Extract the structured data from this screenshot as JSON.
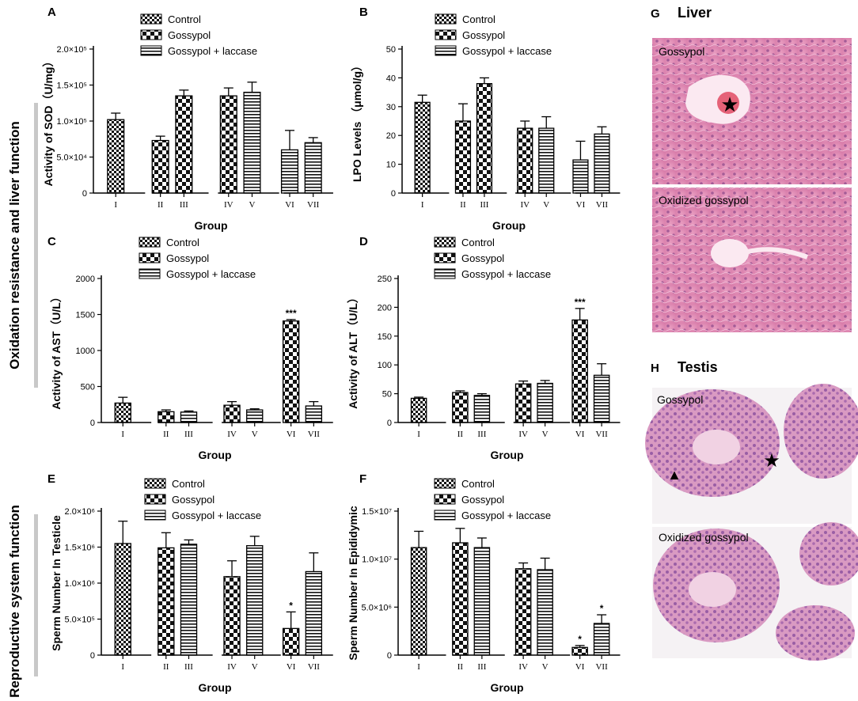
{
  "figure": {
    "side_labels": [
      {
        "id": "oxidation",
        "text": "Oxidation resistance and liver function"
      },
      {
        "id": "reproductive",
        "text": "Reproductive system function"
      }
    ],
    "legend_entries": [
      "Control",
      "Gossypol",
      "Gossypol + laccase"
    ],
    "colors": {
      "ink": "#000000",
      "bar_fill": "#ffffff",
      "side_bar": "#c8c8c8",
      "tissue_pink": "#e38fb4",
      "tissue_purple": "#b66aa3"
    }
  },
  "chart_data": [
    {
      "panel": "A",
      "type": "bar",
      "categories": [
        "I",
        "II",
        "III",
        "IV",
        "V",
        "VI",
        "VII"
      ],
      "values": [
        102000,
        73000,
        135000,
        135000,
        140000,
        60000,
        70000
      ],
      "errors": [
        9000,
        6000,
        8000,
        11000,
        14000,
        27000,
        7000
      ],
      "ylabel": "Activity of SOD（U/mg）",
      "xlabel": "Group",
      "ylim": [
        0,
        200000
      ],
      "yticks": [
        0,
        50000,
        100000,
        150000,
        200000
      ],
      "ytick_labels": [
        "0",
        "5.0×10⁴",
        "1.0×10⁵",
        "1.5×10⁵",
        "2.0×10⁵"
      ],
      "legend": [
        "Control",
        "Gossypol",
        "Gossypol + laccase"
      ],
      "annotations": []
    },
    {
      "panel": "B",
      "type": "bar",
      "categories": [
        "I",
        "II",
        "III",
        "IV",
        "V",
        "VI",
        "VII"
      ],
      "values": [
        31.5,
        25,
        38,
        22.5,
        22.5,
        11.5,
        20.5
      ],
      "errors": [
        2.5,
        6,
        2,
        2.5,
        4,
        6.5,
        2.5
      ],
      "ylabel": "LPO Levels （μmol/g）",
      "xlabel": "Group",
      "ylim": [
        0,
        50
      ],
      "yticks": [
        0,
        10,
        20,
        30,
        40,
        50
      ],
      "ytick_labels": [
        "0",
        "10",
        "20",
        "30",
        "40",
        "50"
      ],
      "legend": [
        "Control",
        "Gossypol",
        "Gossypol + laccase"
      ],
      "annotations": []
    },
    {
      "panel": "C",
      "type": "bar",
      "categories": [
        "I",
        "II",
        "III",
        "IV",
        "V",
        "VI",
        "VII"
      ],
      "values": [
        270,
        150,
        145,
        240,
        175,
        1410,
        230
      ],
      "errors": [
        80,
        25,
        15,
        50,
        15,
        20,
        60
      ],
      "ylabel": "Activity of AST（U/L）",
      "xlabel": "Group",
      "ylim": [
        0,
        2000
      ],
      "yticks": [
        0,
        500,
        1000,
        1500,
        2000
      ],
      "ytick_labels": [
        "0",
        "500",
        "1000",
        "1500",
        "2000"
      ],
      "legend": [
        "Control",
        "Gossypol",
        "Gossypol + laccase"
      ],
      "annotations": [
        {
          "category": "VI",
          "text": "***"
        }
      ]
    },
    {
      "panel": "D",
      "type": "bar",
      "categories": [
        "I",
        "II",
        "III",
        "IV",
        "V",
        "VI",
        "VII"
      ],
      "values": [
        42,
        52,
        47,
        67,
        68,
        178,
        82
      ],
      "errors": [
        2,
        3,
        3,
        5,
        5,
        20,
        20
      ],
      "ylabel": "Activity of ALT（U/L）",
      "xlabel": "Group",
      "ylim": [
        0,
        250
      ],
      "yticks": [
        0,
        50,
        100,
        150,
        200,
        250
      ],
      "ytick_labels": [
        "0",
        "50",
        "100",
        "150",
        "200",
        "250"
      ],
      "legend": [
        "Control",
        "Gossypol",
        "Gossypol + laccase"
      ],
      "annotations": [
        {
          "category": "VI",
          "text": "***"
        }
      ]
    },
    {
      "panel": "E",
      "type": "bar",
      "categories": [
        "I",
        "II",
        "III",
        "IV",
        "V",
        "VI",
        "VII"
      ],
      "values": [
        1550000,
        1490000,
        1540000,
        1090000,
        1520000,
        370000,
        1160000
      ],
      "errors": [
        310000,
        210000,
        60000,
        220000,
        130000,
        230000,
        260000
      ],
      "ylabel": "Sperm Number In Testicle",
      "xlabel": "Group",
      "ylim": [
        0,
        2000000
      ],
      "yticks": [
        0,
        500000,
        1000000,
        1500000,
        2000000
      ],
      "ytick_labels": [
        "0",
        "5.0×10⁵",
        "1.0×10⁶",
        "1.5×10⁶",
        "2.0×10⁶"
      ],
      "legend": [
        "Control",
        "Gossypol",
        "Gossypol + laccase"
      ],
      "annotations": [
        {
          "category": "VI",
          "text": "*"
        }
      ]
    },
    {
      "panel": "F",
      "type": "bar",
      "categories": [
        "I",
        "II",
        "III",
        "IV",
        "V",
        "VI",
        "VII"
      ],
      "values": [
        11200000,
        11700000,
        11200000,
        9000000,
        8900000,
        800000,
        3300000
      ],
      "errors": [
        1700000,
        1500000,
        1000000,
        600000,
        1200000,
        200000,
        900000
      ],
      "ylabel": "Sperm Number In Epididymic",
      "xlabel": "Group",
      "ylim": [
        0,
        15000000
      ],
      "yticks": [
        0,
        5000000,
        10000000,
        15000000
      ],
      "ytick_labels": [
        "0",
        "5.0×10⁶",
        "1.0×10⁷",
        "1.5×10⁷"
      ],
      "legend": [
        "Control",
        "Gossypol",
        "Gossypol + laccase"
      ],
      "annotations": [
        {
          "category": "VI",
          "text": "*"
        },
        {
          "category": "VII",
          "text": "*"
        }
      ]
    }
  ],
  "micrographs": [
    {
      "panel": "G",
      "title": "Liver",
      "top_label": "Gossypol",
      "bottom_label": "Oxidized gossypol"
    },
    {
      "panel": "H",
      "title": "Testis",
      "top_label": "Gossypol",
      "bottom_label": "Oxidized gossypol"
    }
  ]
}
